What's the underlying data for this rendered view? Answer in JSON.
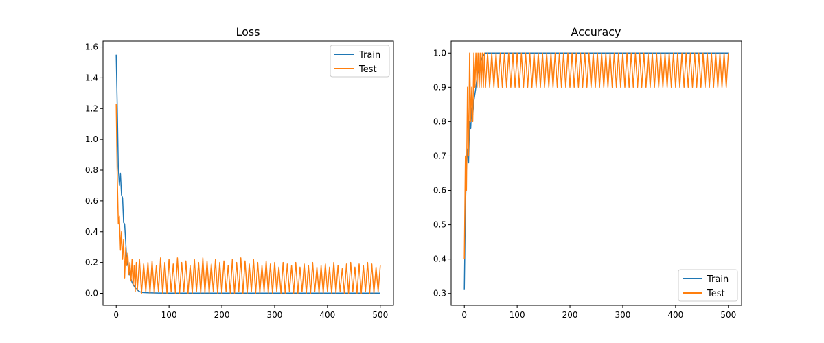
{
  "colors": {
    "train": "#1f77b4",
    "test": "#ff7f0e",
    "frame": "#000000",
    "legend_border": "#cccccc"
  },
  "chart_data": [
    {
      "type": "line",
      "title": "Loss",
      "xlabel": "",
      "ylabel": "",
      "xlim": [
        -25,
        525
      ],
      "ylim": [
        -0.078,
        1.638
      ],
      "xticks": [
        0,
        100,
        200,
        300,
        400,
        500
      ],
      "yticks": [
        0.0,
        0.2,
        0.4,
        0.6,
        0.8,
        1.0,
        1.2,
        1.4,
        1.6
      ],
      "ytick_labels": [
        "0.0",
        "0.2",
        "0.4",
        "0.6",
        "0.8",
        "1.0",
        "1.2",
        "1.4",
        "1.6"
      ],
      "grid": false,
      "legend": "top-right",
      "series": [
        {
          "name": "Train",
          "color": "#1f77b4",
          "x": [
            0,
            2,
            4,
            6,
            8,
            10,
            12,
            14,
            16,
            18,
            20,
            25,
            30,
            35,
            40,
            45,
            50,
            60,
            80,
            100,
            150,
            200,
            300,
            400,
            500
          ],
          "y": [
            1.55,
            1.2,
            0.82,
            0.7,
            0.78,
            0.64,
            0.62,
            0.46,
            0.45,
            0.33,
            0.22,
            0.13,
            0.07,
            0.04,
            0.02,
            0.01,
            0.005,
            0.003,
            0.002,
            0.001,
            0.001,
            0.001,
            0.001,
            0.001,
            0.001
          ]
        },
        {
          "name": "Test",
          "color": "#ff7f0e",
          "x": [
            0,
            2,
            4,
            6,
            8,
            10,
            12,
            14,
            16,
            18,
            20,
            22,
            24,
            26,
            28,
            30,
            32,
            34,
            36,
            38,
            40,
            44,
            48,
            52,
            56,
            60,
            64,
            68,
            72,
            76,
            80,
            84,
            88,
            92,
            96,
            100,
            104,
            108,
            112,
            116,
            120,
            124,
            128,
            132,
            136,
            140,
            144,
            148,
            152,
            156,
            160,
            164,
            168,
            172,
            176,
            180,
            184,
            188,
            192,
            196,
            200,
            204,
            208,
            212,
            216,
            220,
            224,
            228,
            232,
            236,
            240,
            244,
            248,
            252,
            256,
            260,
            264,
            268,
            272,
            276,
            280,
            284,
            288,
            292,
            296,
            300,
            304,
            308,
            312,
            316,
            320,
            324,
            328,
            332,
            336,
            340,
            344,
            348,
            352,
            356,
            360,
            364,
            368,
            372,
            376,
            380,
            384,
            388,
            392,
            396,
            400,
            404,
            408,
            412,
            416,
            420,
            424,
            428,
            432,
            436,
            440,
            444,
            448,
            452,
            456,
            460,
            464,
            468,
            472,
            476,
            480,
            484,
            488,
            492,
            496,
            500
          ],
          "y": [
            1.23,
            0.75,
            0.45,
            0.5,
            0.28,
            0.4,
            0.22,
            0.35,
            0.1,
            0.3,
            0.18,
            0.26,
            0.12,
            0.2,
            0.08,
            0.22,
            0.05,
            0.18,
            0.01,
            0.2,
            0.02,
            0.22,
            0.0,
            0.19,
            0.01,
            0.2,
            0.0,
            0.21,
            0.0,
            0.18,
            0.01,
            0.23,
            0.0,
            0.2,
            0.0,
            0.22,
            0.01,
            0.19,
            0.0,
            0.23,
            0.0,
            0.2,
            0.01,
            0.21,
            0.0,
            0.18,
            0.0,
            0.22,
            0.01,
            0.2,
            0.0,
            0.23,
            0.0,
            0.21,
            0.0,
            0.19,
            0.01,
            0.22,
            0.0,
            0.2,
            0.0,
            0.21,
            0.01,
            0.18,
            0.0,
            0.22,
            0.0,
            0.2,
            0.01,
            0.23,
            0.0,
            0.21,
            0.0,
            0.19,
            0.01,
            0.22,
            0.0,
            0.2,
            0.0,
            0.18,
            0.01,
            0.21,
            0.0,
            0.19,
            0.0,
            0.2,
            0.01,
            0.17,
            0.0,
            0.2,
            0.0,
            0.19,
            0.01,
            0.18,
            0.0,
            0.2,
            0.0,
            0.17,
            0.01,
            0.19,
            0.0,
            0.18,
            0.0,
            0.2,
            0.01,
            0.17,
            0.0,
            0.18,
            0.0,
            0.19,
            0.01,
            0.17,
            0.0,
            0.2,
            0.0,
            0.18,
            0.01,
            0.16,
            0.0,
            0.19,
            0.0,
            0.2,
            0.01,
            0.17,
            0.0,
            0.19,
            0.0,
            0.18,
            0.01,
            0.2,
            0.0,
            0.19,
            0.0,
            0.17,
            0.01,
            0.18
          ]
        }
      ]
    },
    {
      "type": "line",
      "title": "Accuracy",
      "xlabel": "",
      "ylabel": "",
      "xlim": [
        -25,
        525
      ],
      "ylim": [
        0.2655,
        1.0345
      ],
      "xticks": [
        0,
        100,
        200,
        300,
        400,
        500
      ],
      "yticks": [
        0.3,
        0.4,
        0.5,
        0.6,
        0.7,
        0.8,
        0.9,
        1.0
      ],
      "ytick_labels": [
        "0.3",
        "0.4",
        "0.5",
        "0.6",
        "0.7",
        "0.8",
        "0.9",
        "1.0"
      ],
      "grid": false,
      "legend": "bottom-right",
      "series": [
        {
          "name": "Train",
          "color": "#1f77b4",
          "x": [
            0,
            2,
            4,
            6,
            8,
            10,
            12,
            14,
            16,
            18,
            20,
            22,
            24,
            26,
            28,
            30,
            34,
            40,
            50,
            100,
            200,
            300,
            400,
            500
          ],
          "y": [
            0.31,
            0.55,
            0.66,
            0.72,
            0.68,
            0.8,
            0.78,
            0.84,
            0.82,
            0.86,
            0.88,
            0.9,
            0.93,
            0.95,
            0.96,
            0.97,
            0.99,
            1.0,
            1.0,
            1.0,
            1.0,
            1.0,
            1.0,
            1.0
          ]
        },
        {
          "name": "Test",
          "color": "#ff7f0e",
          "x": [
            0,
            2,
            4,
            6,
            8,
            10,
            12,
            14,
            16,
            18,
            20,
            22,
            24,
            26,
            28,
            30,
            32,
            34,
            36,
            38,
            40,
            44,
            48,
            52,
            56,
            60,
            64,
            68,
            72,
            76,
            80,
            84,
            88,
            92,
            96,
            100,
            104,
            108,
            112,
            116,
            120,
            124,
            128,
            132,
            136,
            140,
            144,
            148,
            152,
            156,
            160,
            164,
            168,
            172,
            176,
            180,
            184,
            188,
            192,
            196,
            200,
            204,
            208,
            212,
            216,
            220,
            224,
            228,
            232,
            236,
            240,
            244,
            248,
            252,
            256,
            260,
            264,
            268,
            272,
            276,
            280,
            284,
            288,
            292,
            296,
            300,
            304,
            308,
            312,
            316,
            320,
            324,
            328,
            332,
            336,
            340,
            344,
            348,
            352,
            356,
            360,
            364,
            368,
            372,
            376,
            380,
            384,
            388,
            392,
            396,
            400,
            404,
            408,
            412,
            416,
            420,
            424,
            428,
            432,
            436,
            440,
            444,
            448,
            452,
            456,
            460,
            464,
            468,
            472,
            476,
            480,
            484,
            488,
            492,
            496,
            500
          ],
          "y": [
            0.4,
            0.7,
            0.6,
            0.9,
            0.7,
            1.0,
            0.8,
            0.9,
            0.8,
            1.0,
            0.9,
            1.0,
            0.9,
            1.0,
            0.9,
            1.0,
            0.9,
            1.0,
            0.9,
            1.0,
            0.9,
            1.0,
            0.9,
            1.0,
            0.9,
            1.0,
            0.9,
            1.0,
            0.9,
            1.0,
            0.9,
            1.0,
            0.9,
            1.0,
            0.9,
            1.0,
            0.9,
            1.0,
            0.9,
            1.0,
            0.9,
            1.0,
            0.9,
            1.0,
            0.9,
            1.0,
            0.9,
            1.0,
            0.9,
            1.0,
            0.9,
            1.0,
            0.9,
            1.0,
            0.9,
            1.0,
            0.9,
            1.0,
            0.9,
            1.0,
            0.9,
            1.0,
            0.9,
            1.0,
            0.9,
            1.0,
            0.9,
            1.0,
            0.9,
            1.0,
            0.9,
            1.0,
            0.9,
            1.0,
            0.9,
            1.0,
            0.9,
            1.0,
            0.9,
            1.0,
            0.9,
            1.0,
            0.9,
            1.0,
            0.9,
            1.0,
            0.9,
            1.0,
            0.9,
            1.0,
            0.9,
            1.0,
            0.9,
            1.0,
            0.9,
            1.0,
            0.9,
            1.0,
            0.9,
            1.0,
            0.9,
            1.0,
            0.9,
            1.0,
            0.9,
            1.0,
            0.9,
            1.0,
            0.9,
            1.0,
            0.9,
            1.0,
            0.9,
            1.0,
            0.9,
            1.0,
            0.9,
            1.0,
            0.9,
            1.0,
            0.9,
            1.0,
            0.9,
            1.0,
            0.9,
            1.0,
            0.9,
            1.0,
            0.9,
            1.0,
            0.9,
            1.0,
            0.9,
            1.0,
            0.9,
            1.0
          ]
        }
      ]
    }
  ]
}
